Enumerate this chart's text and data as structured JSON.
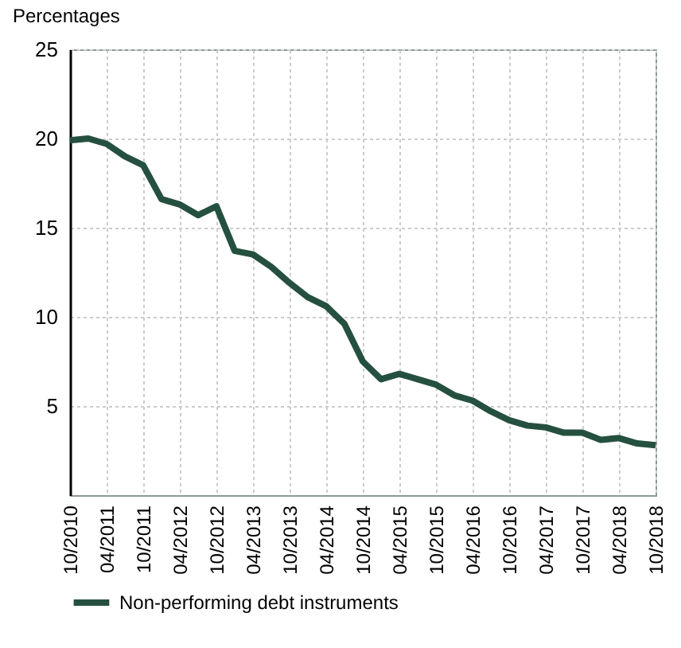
{
  "chart_data": {
    "type": "line",
    "ylabel": "Percentages",
    "categories": [
      "10/2010",
      null,
      "04/2011",
      null,
      "10/2011",
      null,
      "04/2012",
      null,
      "10/2012",
      null,
      "04/2013",
      null,
      "10/2013",
      null,
      "04/2014",
      null,
      "10/2014",
      null,
      "04/2015",
      null,
      "10/2015",
      null,
      "04/2016",
      null,
      "10/2016",
      null,
      "04/2017",
      null,
      "10/2017",
      null,
      "04/2018",
      null,
      "10/2018"
    ],
    "series": [
      {
        "name": "Non-performing debt instruments",
        "color": "#25503f",
        "values": [
          19.9,
          20.0,
          19.7,
          19.0,
          18.5,
          16.6,
          16.3,
          15.7,
          16.2,
          13.7,
          13.5,
          12.8,
          11.9,
          11.1,
          10.6,
          9.6,
          7.5,
          6.5,
          6.8,
          6.5,
          6.2,
          5.6,
          5.3,
          4.7,
          4.2,
          3.9,
          3.8,
          3.5,
          3.5,
          3.1,
          3.2,
          2.9,
          2.8
        ]
      }
    ],
    "ylim": [
      0,
      25
    ],
    "yticks": [
      5,
      10,
      15,
      20,
      25
    ],
    "grid": true,
    "legend": "bottom",
    "marker": "none",
    "line_style": "solid"
  }
}
